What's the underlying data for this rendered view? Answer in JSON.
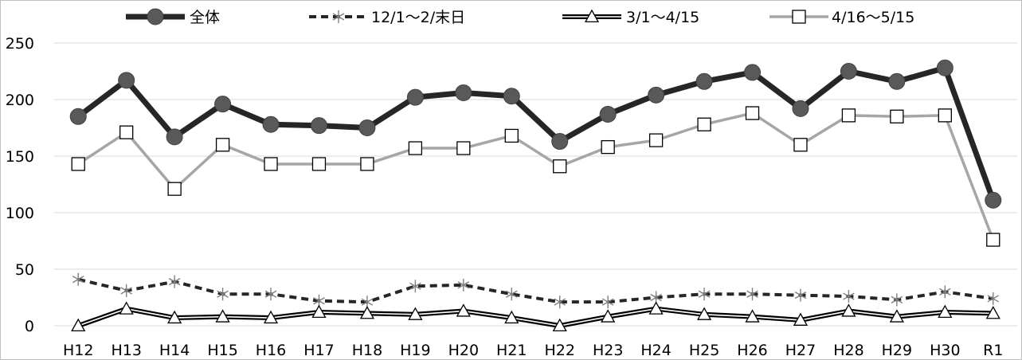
{
  "chart_data": {
    "type": "line",
    "categories": [
      "H12",
      "H13",
      "H14",
      "H15",
      "H16",
      "H17",
      "H18",
      "H19",
      "H20",
      "H21",
      "H22",
      "H23",
      "H24",
      "H25",
      "H26",
      "H27",
      "H28",
      "H29",
      "H30",
      "R1"
    ],
    "ylim": [
      0,
      250
    ],
    "yticks": [
      "0",
      "50",
      "100",
      "150",
      "200",
      "250"
    ],
    "grid": "horizontal",
    "legend_position": "top",
    "series": [
      {
        "name": "全体",
        "color": "#262626",
        "marker": "circle",
        "values": [
          185,
          217,
          167,
          196,
          178,
          177,
          175,
          202,
          206,
          203,
          163,
          187,
          204,
          216,
          224,
          192,
          225,
          216,
          228,
          111
        ]
      },
      {
        "name": "12/1～2/末日",
        "color": "#262626",
        "marker": "asterisk",
        "values": [
          41,
          31,
          39,
          28,
          28,
          22,
          21,
          35,
          36,
          28,
          21,
          21,
          25,
          28,
          28,
          27,
          26,
          23,
          30,
          24
        ]
      },
      {
        "name": "3/1～4/15",
        "color": "#000000",
        "marker": "triangle",
        "values": [
          0,
          15,
          7,
          8,
          7,
          12,
          11,
          10,
          13,
          7,
          0,
          8,
          15,
          10,
          8,
          5,
          13,
          8,
          12,
          11
        ]
      },
      {
        "name": "4/16～5/15",
        "color": "#a6a6a6",
        "marker": "square",
        "values": [
          143,
          171,
          121,
          160,
          143,
          143,
          143,
          157,
          157,
          168,
          141,
          158,
          164,
          178,
          188,
          160,
          186,
          185,
          186,
          76
        ]
      }
    ]
  }
}
